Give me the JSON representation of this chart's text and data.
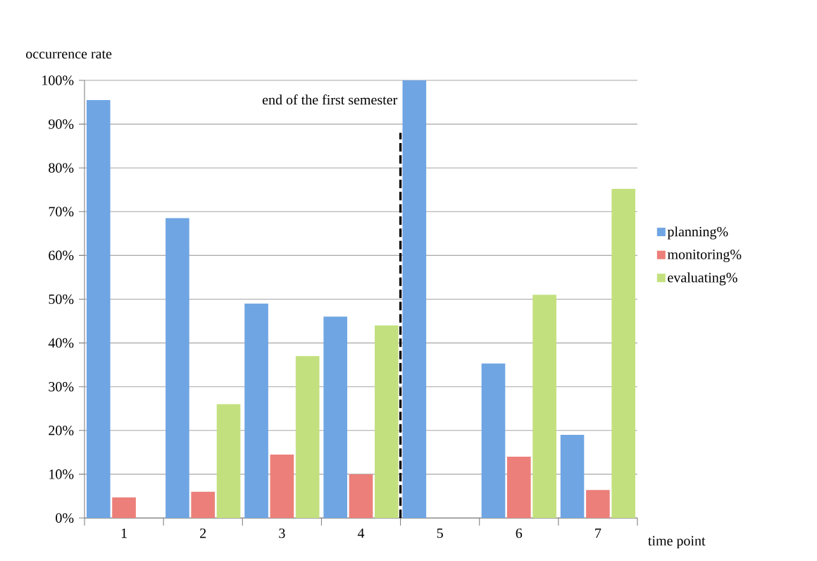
{
  "chart_data": {
    "type": "bar",
    "xlabel": "time point",
    "ylabel": "occurrence rate",
    "x": [
      1,
      2,
      3,
      4,
      5,
      6,
      7
    ],
    "xlim": [
      0.5,
      7.5
    ],
    "xticks": [
      {
        "value": 0.5,
        "label": null
      },
      1,
      {
        "value": 1.5,
        "label": null
      },
      2,
      {
        "value": 2.5,
        "label": null
      },
      3,
      {
        "value": 3.5,
        "label": null
      },
      4,
      {
        "value": 4.5,
        "label": null
      },
      5,
      {
        "value": 5.5,
        "label": null
      },
      6,
      {
        "value": 6.5,
        "label": null
      },
      7,
      {
        "value": 7.5,
        "label": null
      }
    ],
    "ylim": [
      0,
      100
    ],
    "yticks": [
      {
        "value": 0,
        "label": "0%"
      },
      {
        "value": 10,
        "label": "10%"
      },
      {
        "value": 20,
        "label": "20%"
      },
      {
        "value": 30,
        "label": "30%"
      },
      {
        "value": 40,
        "label": "40%"
      },
      {
        "value": 50,
        "label": "50%"
      },
      {
        "value": 60,
        "label": "60%"
      },
      {
        "value": 70,
        "label": "70%"
      },
      {
        "value": 80,
        "label": "80%"
      },
      {
        "value": 90,
        "label": "90%"
      },
      {
        "value": 100,
        "label": "100%"
      }
    ],
    "series": [
      {
        "name": "planning%",
        "color": "#6fa5e3",
        "values": [
          95.5,
          68.5,
          49,
          46,
          100,
          35.3,
          19
        ]
      },
      {
        "name": "monitoring%",
        "color": "#ec7f79",
        "values": [
          4.7,
          6,
          14.5,
          10,
          0,
          14,
          6.4
        ]
      },
      {
        "name": "evaluating%",
        "color": "#c3e07e",
        "values": [
          0,
          26,
          37,
          44,
          0,
          51,
          75.2
        ]
      }
    ],
    "ref_lines": [
      {
        "axis": "x",
        "value": 4.5,
        "label": "end of the first semester",
        "line_style": "dashed",
        "color": "#000000"
      }
    ],
    "grid": "y",
    "legend": "right"
  }
}
